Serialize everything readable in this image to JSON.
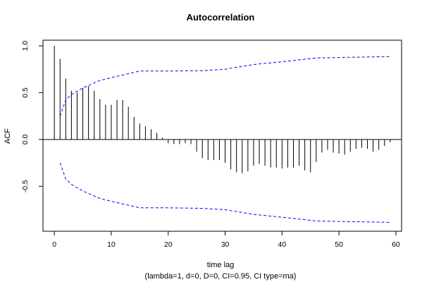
{
  "chart_data": {
    "type": "bar",
    "title": "Autocorrelation",
    "xlabel": "time lag",
    "sublabel": "(lambda=1, d=0, D=0, CI=0.95, CI type=ma)",
    "ylabel": "ACF",
    "xlim": [
      -2,
      61
    ],
    "ylim": [
      -0.98,
      1.06
    ],
    "xticks": [
      0,
      10,
      20,
      30,
      40,
      50,
      60
    ],
    "yticks": [
      -0.5,
      0.0,
      0.5,
      1.0
    ],
    "ytick_labels": [
      "-0.5",
      "0.0",
      "0.5",
      "1.0"
    ],
    "grid": false,
    "series": [
      {
        "lags": [
          0,
          1,
          2,
          3,
          4,
          5,
          6,
          7,
          8,
          9,
          10,
          11,
          12,
          13,
          14,
          15,
          16,
          17,
          18,
          19,
          20,
          21,
          22,
          23,
          24,
          25,
          26,
          27,
          28,
          29,
          30,
          31,
          32,
          33,
          34,
          35,
          36,
          37,
          38,
          39,
          40,
          41,
          42,
          43,
          44,
          45,
          46,
          47,
          48,
          49,
          50,
          51,
          52,
          53,
          54,
          55,
          56,
          57,
          58,
          59
        ],
        "values": [
          1.0,
          0.86,
          0.65,
          0.52,
          0.5,
          0.55,
          0.57,
          0.52,
          0.43,
          0.37,
          0.37,
          0.42,
          0.42,
          0.35,
          0.24,
          0.17,
          0.14,
          0.11,
          0.07,
          0.02,
          -0.04,
          -0.05,
          -0.05,
          -0.04,
          -0.05,
          -0.13,
          -0.2,
          -0.22,
          -0.22,
          -0.22,
          -0.25,
          -0.32,
          -0.35,
          -0.36,
          -0.34,
          -0.28,
          -0.26,
          -0.28,
          -0.3,
          -0.3,
          -0.31,
          -0.3,
          -0.3,
          -0.28,
          -0.33,
          -0.35,
          -0.24,
          -0.14,
          -0.11,
          -0.14,
          -0.15,
          -0.16,
          -0.13,
          -0.1,
          -0.09,
          -0.1,
          -0.13,
          -0.11,
          -0.07,
          -0.03
        ]
      },
      {
        "type": "line",
        "lags": [
          1,
          2,
          3,
          5,
          8,
          10,
          15,
          20,
          26,
          30,
          35,
          40,
          46,
          50,
          59
        ],
        "values": [
          0.25,
          0.42,
          0.48,
          0.55,
          0.63,
          0.66,
          0.73,
          0.73,
          0.735,
          0.75,
          0.8,
          0.83,
          0.87,
          0.875,
          0.885
        ],
        "color": "#0000ff",
        "dash": "dashed",
        "mirror": true
      }
    ],
    "colors": {
      "bars": "#000000",
      "ci": "#0000ff",
      "zero_line": "#000000",
      "frame": "#000000"
    }
  }
}
